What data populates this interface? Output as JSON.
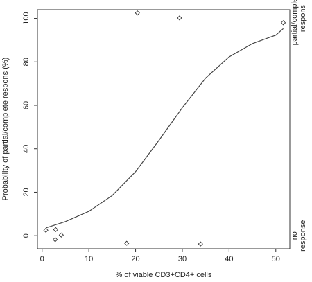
{
  "chart_data": {
    "type": "scatter",
    "title": "",
    "xlabel": "% of viable CD3+CD4+ cells",
    "ylabel": "Probability of partial/complete respons (%)",
    "xlim": [
      -1,
      53
    ],
    "ylim": [
      -6,
      104
    ],
    "xticks": [
      0,
      10,
      20,
      30,
      40,
      50
    ],
    "yticks": [
      0,
      20,
      40,
      60,
      80,
      100
    ],
    "grid": false,
    "right_axis_labels": [
      {
        "lines": [
          "partial/complete",
          "respons"
        ],
        "at_y": 100
      },
      {
        "lines": [
          "no",
          "response"
        ],
        "at_y": 0
      }
    ],
    "points": [
      {
        "x": 0.8,
        "y": 2.5
      },
      {
        "x": 2.9,
        "y": 2.8
      },
      {
        "x": 2.8,
        "y": -1.8
      },
      {
        "x": 4.1,
        "y": 0.3
      },
      {
        "x": 18.1,
        "y": -3.5
      },
      {
        "x": 20.4,
        "y": 102.5
      },
      {
        "x": 29.4,
        "y": 100.2
      },
      {
        "x": 33.9,
        "y": -3.8
      },
      {
        "x": 51.6,
        "y": 98.0
      }
    ],
    "fit_curve": {
      "type": "logistic",
      "x": [
        0.8,
        5,
        10,
        15,
        20,
        25,
        30,
        35,
        40,
        45,
        50,
        51.6
      ],
      "y": [
        3.6,
        6.5,
        11.2,
        18.5,
        29.5,
        43.9,
        58.9,
        72.6,
        82.3,
        88.4,
        92.3,
        95.3
      ]
    }
  }
}
